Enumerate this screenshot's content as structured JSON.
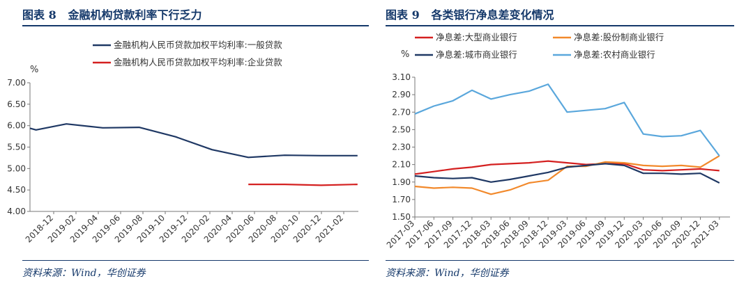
{
  "left": {
    "title_prefix": "图表 8",
    "title_text": "金融机构贷款利率下行乏力",
    "source": "资料来源：Wind，华创证券",
    "chart_data": {
      "type": "line",
      "title": "金融机构贷款利率下行乏力",
      "ylabel": "%",
      "xlabel": "",
      "ylim": [
        4.0,
        7.0
      ],
      "yticks": [
        "4.00",
        "4.50",
        "5.00",
        "5.50",
        "6.00",
        "6.50",
        "7.00"
      ],
      "x": [
        "2018-12",
        "2019-02",
        "2019-04",
        "2019-06",
        "2019-08",
        "2019-10",
        "2019-12",
        "2020-02",
        "2020-04",
        "2020-06",
        "2020-08",
        "2020-10",
        "2020-12",
        "2021-02"
      ],
      "grid": false,
      "legend_position": "top",
      "series": [
        {
          "name": "金融机构人民币贷款加权平均利率:一般贷款",
          "color": "#1f3864",
          "points": [
            [
              0,
              5.94
            ],
            [
              0.5,
              5.9
            ],
            [
              3,
              6.04
            ],
            [
              6,
              5.95
            ],
            [
              9,
              5.96
            ],
            [
              12,
              5.74
            ],
            [
              15,
              5.44
            ],
            [
              18,
              5.26
            ],
            [
              21,
              5.31
            ],
            [
              24,
              5.3
            ],
            [
              27,
              5.3
            ]
          ]
        },
        {
          "name": "金融机构人民币贷款加权平均利率:企业贷款",
          "color": "#d42020",
          "points": [
            [
              18,
              4.63
            ],
            [
              21,
              4.63
            ],
            [
              24,
              4.61
            ],
            [
              27,
              4.63
            ]
          ]
        }
      ]
    }
  },
  "right": {
    "title_prefix": "图表 9",
    "title_text": "各类银行净息差变化情况",
    "source": "资料来源：Wind，华创证券",
    "chart_data": {
      "type": "line",
      "title": "各类银行净息差变化情况",
      "ylabel": "%",
      "xlabel": "",
      "ylim": [
        1.5,
        3.1
      ],
      "yticks": [
        "1.50",
        "1.70",
        "1.90",
        "2.10",
        "2.30",
        "2.50",
        "2.70",
        "2.90",
        "3.10"
      ],
      "x": [
        "2017-03",
        "2017-06",
        "2017-09",
        "2017-12",
        "2018-03",
        "2018-06",
        "2018-09",
        "2018-12",
        "2019-03",
        "2019-06",
        "2019-09",
        "2019-12",
        "2020-03",
        "2020-06",
        "2020-09",
        "2020-12",
        "2021-03"
      ],
      "grid": false,
      "legend_position": "top",
      "series": [
        {
          "name": "净息差:大型商业银行",
          "color": "#d42020",
          "values": [
            1.99,
            2.02,
            2.05,
            2.07,
            2.1,
            2.11,
            2.12,
            2.14,
            2.12,
            2.1,
            2.11,
            2.11,
            2.04,
            2.03,
            2.04,
            2.05,
            2.03
          ]
        },
        {
          "name": "净息差:股份制商业银行",
          "color": "#f2892b",
          "values": [
            1.85,
            1.83,
            1.84,
            1.83,
            1.76,
            1.81,
            1.89,
            1.92,
            2.08,
            2.08,
            2.13,
            2.12,
            2.09,
            2.08,
            2.09,
            2.07,
            2.2
          ]
        },
        {
          "name": "净息差:城市商业银行",
          "color": "#1f3864",
          "values": [
            1.97,
            1.95,
            1.94,
            1.95,
            1.9,
            1.93,
            1.97,
            2.01,
            2.07,
            2.09,
            2.11,
            2.09,
            2.0,
            2.0,
            1.99,
            2.0,
            1.89
          ]
        },
        {
          "name": "净息差:农村商业银行",
          "color": "#5aa7dc",
          "values": [
            2.68,
            2.77,
            2.83,
            2.95,
            2.85,
            2.9,
            2.94,
            3.02,
            2.7,
            2.72,
            2.74,
            2.81,
            2.45,
            2.42,
            2.43,
            2.49,
            2.2
          ]
        }
      ]
    }
  }
}
